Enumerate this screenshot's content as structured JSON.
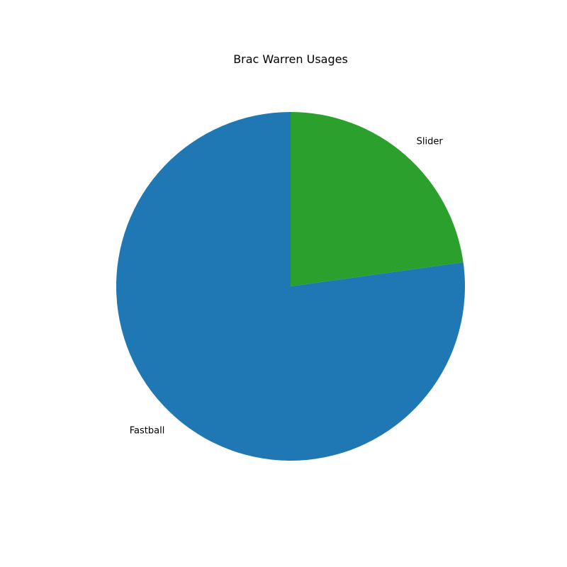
{
  "chart_data": {
    "type": "pie",
    "title": "Brac Warren Usages",
    "categories": [
      "Slider",
      "Fastball"
    ],
    "values": [
      22.8,
      77.2
    ],
    "colors": [
      "#2ca02c",
      "#1f77b4"
    ],
    "start_angle_deg": 90,
    "direction": "clockwise",
    "legend": false
  }
}
